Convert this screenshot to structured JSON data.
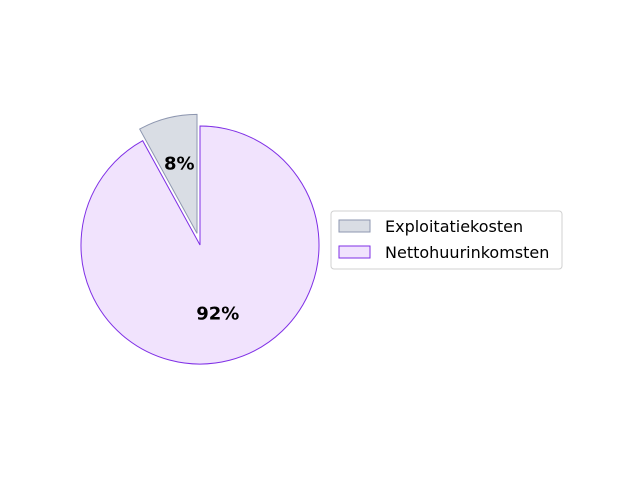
{
  "chart_data": {
    "type": "pie",
    "title": "",
    "slices": [
      {
        "label": "Exploitatiekosten",
        "value": 8,
        "pct_label": "8%",
        "face": "#d9dde4",
        "edge": "#8e97b0",
        "exploded": true
      },
      {
        "label": "Nettohuurinkomsten",
        "value": 92,
        "pct_label": "92%",
        "face": "#f1e3fd",
        "edge": "#7f2fe6",
        "exploded": false
      }
    ],
    "start_angle_deg": 90,
    "direction": "counterclockwise",
    "legend_position": "right"
  }
}
